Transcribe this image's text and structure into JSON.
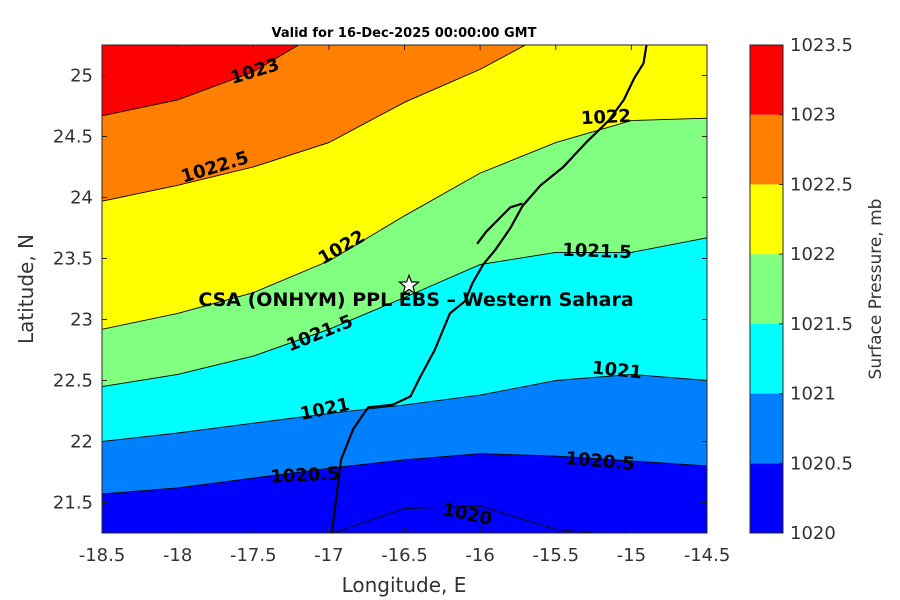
{
  "chart_data": {
    "type": "filled-contour",
    "title": "Valid for 16-Dec-2025 00:00:00 GMT",
    "xlabel": "Longitude, E",
    "ylabel": "Latitude, N",
    "xlim": [
      -18.5,
      -14.5
    ],
    "ylim": [
      21.25,
      25.25
    ],
    "xticks": [
      "-18.5",
      "-18",
      "-17.5",
      "-17",
      "-16.5",
      "-16",
      "-15.5",
      "-15",
      "-14.5"
    ],
    "yticks": [
      "21.5",
      "22",
      "22.5",
      "23",
      "23.5",
      "24",
      "24.5",
      "25"
    ],
    "colorbar": {
      "label": "Surface Pressure, mb",
      "levels": [
        1020,
        1020.5,
        1021,
        1021.5,
        1022,
        1022.5,
        1023,
        1023.5
      ],
      "tick_labels": [
        "1020",
        "1020.5",
        "1021",
        "1021.5",
        "1022",
        "1022.5",
        "1023",
        "1023.5"
      ],
      "colors": [
        "#0000ff",
        "#0080ff",
        "#00ffff",
        "#80ff80",
        "#ffff00",
        "#ff8000",
        "#ff0000",
        "#800000"
      ]
    },
    "contours": [
      {
        "level": 1020,
        "label": "1020",
        "points": [
          [
            -16.97,
            21.25
          ],
          [
            -16.5,
            21.45
          ],
          [
            -16.0,
            21.47
          ],
          [
            -15.5,
            21.28
          ],
          [
            -15.25,
            21.25
          ]
        ]
      },
      {
        "level": 1020.5,
        "label": "1020.5",
        "points": [
          [
            -18.5,
            21.57
          ],
          [
            -18.0,
            21.62
          ],
          [
            -17.5,
            21.7
          ],
          [
            -17.0,
            21.78
          ],
          [
            -16.5,
            21.85
          ],
          [
            -16.0,
            21.9
          ],
          [
            -15.5,
            21.88
          ],
          [
            -15.0,
            21.84
          ],
          [
            -14.5,
            21.8
          ]
        ]
      },
      {
        "level": 1021,
        "label": "1021",
        "points": [
          [
            -18.5,
            22.0
          ],
          [
            -18.0,
            22.07
          ],
          [
            -17.5,
            22.15
          ],
          [
            -17.0,
            22.23
          ],
          [
            -16.5,
            22.3
          ],
          [
            -16.0,
            22.38
          ],
          [
            -15.5,
            22.5
          ],
          [
            -15.0,
            22.55
          ],
          [
            -14.5,
            22.5
          ]
        ]
      },
      {
        "level": 1021.5,
        "label": "1021.5",
        "points": [
          [
            -18.5,
            22.45
          ],
          [
            -18.0,
            22.55
          ],
          [
            -17.5,
            22.7
          ],
          [
            -17.0,
            22.92
          ],
          [
            -16.5,
            23.18
          ],
          [
            -16.0,
            23.45
          ],
          [
            -15.5,
            23.55
          ],
          [
            -15.0,
            23.55
          ],
          [
            -14.5,
            23.67
          ]
        ]
      },
      {
        "level": 1022,
        "label": "1022",
        "points": [
          [
            -18.5,
            22.92
          ],
          [
            -18.0,
            23.05
          ],
          [
            -17.5,
            23.22
          ],
          [
            -17.0,
            23.48
          ],
          [
            -16.5,
            23.85
          ],
          [
            -16.0,
            24.2
          ],
          [
            -15.5,
            24.45
          ],
          [
            -15.0,
            24.63
          ],
          [
            -14.5,
            24.65
          ]
        ]
      },
      {
        "level": 1022.5,
        "label": "1022.5",
        "points": [
          [
            -18.5,
            23.97
          ],
          [
            -18.0,
            24.1
          ],
          [
            -17.5,
            24.25
          ],
          [
            -17.0,
            24.45
          ],
          [
            -16.5,
            24.78
          ],
          [
            -16.0,
            25.05
          ],
          [
            -15.7,
            25.25
          ]
        ]
      },
      {
        "level": 1023,
        "label": "1023",
        "points": [
          [
            -18.5,
            24.67
          ],
          [
            -18.0,
            24.8
          ],
          [
            -17.5,
            25.03
          ],
          [
            -17.2,
            25.25
          ]
        ]
      }
    ],
    "coastline": [
      [
        -16.98,
        21.25
      ],
      [
        -16.95,
        21.55
      ],
      [
        -16.92,
        21.85
      ],
      [
        -16.84,
        22.1
      ],
      [
        -16.74,
        22.28
      ],
      [
        -16.58,
        22.3
      ],
      [
        -16.46,
        22.37
      ],
      [
        -16.4,
        22.52
      ],
      [
        -16.3,
        22.75
      ],
      [
        -16.25,
        22.9
      ],
      [
        -16.2,
        23.05
      ],
      [
        -16.1,
        23.15
      ],
      [
        -16.05,
        23.3
      ],
      [
        -15.98,
        23.45
      ],
      [
        -15.9,
        23.57
      ],
      [
        -15.8,
        23.75
      ],
      [
        -15.72,
        23.93
      ],
      [
        -15.6,
        24.1
      ],
      [
        -15.45,
        24.25
      ],
      [
        -15.3,
        24.45
      ],
      [
        -15.15,
        24.63
      ],
      [
        -15.05,
        24.8
      ],
      [
        -14.98,
        24.98
      ],
      [
        -14.92,
        25.1
      ],
      [
        -14.9,
        25.25
      ]
    ],
    "peninsula": [
      [
        -15.72,
        23.95
      ],
      [
        -15.8,
        23.92
      ],
      [
        -15.88,
        23.82
      ],
      [
        -15.96,
        23.72
      ],
      [
        -16.02,
        23.62
      ]
    ],
    "site": {
      "name": "CSA (ONHYM) PPL EBS - Western Sahara",
      "lon": -16.47,
      "lat": 23.28
    }
  }
}
